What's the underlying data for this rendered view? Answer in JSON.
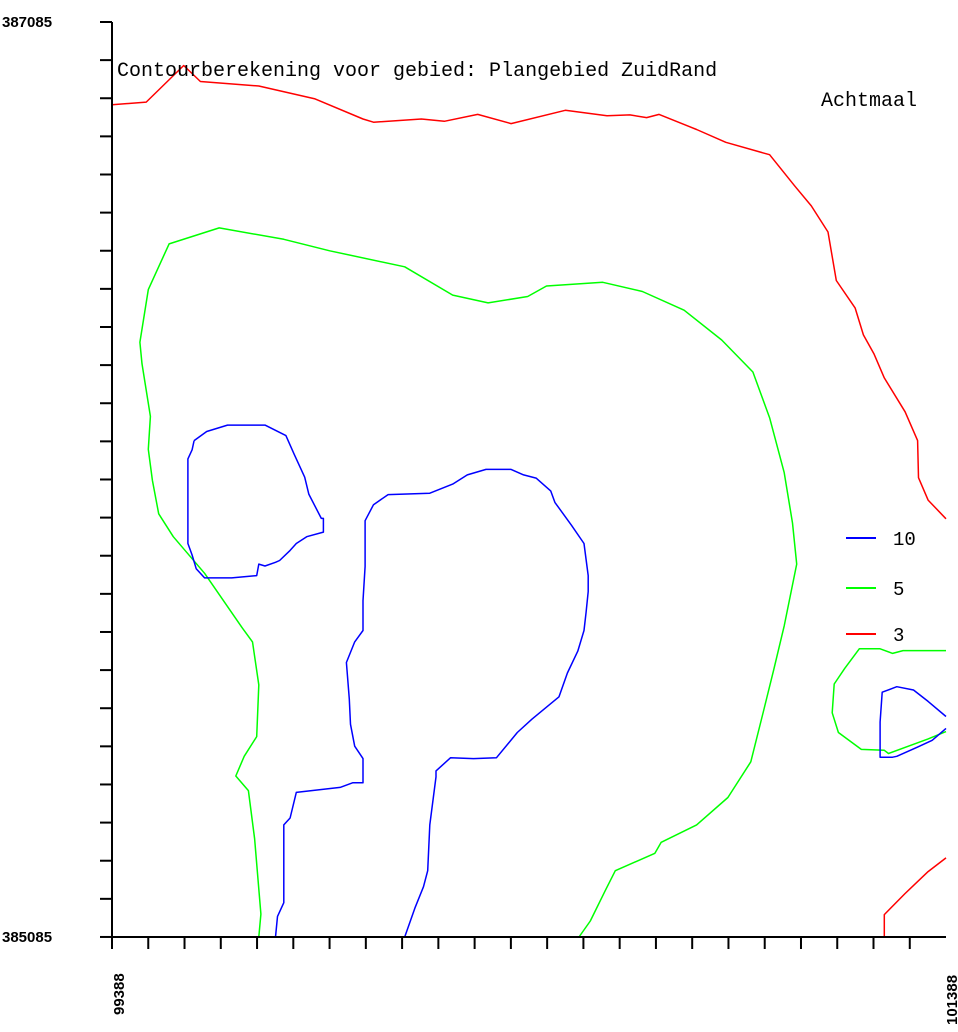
{
  "chart_data": {
    "type": "contour",
    "title": "Contourberekening voor gebied: Plangebied ZuidRand",
    "subtitle": "Achtmaal",
    "xlabel": "",
    "ylabel": "",
    "xlim": [
      99388,
      101388
    ],
    "ylim": [
      385085,
      387085
    ],
    "x_tick_labels": [
      "99388",
      "101388"
    ],
    "y_tick_labels": [
      "387085",
      "385085"
    ],
    "x_tick_step": 86.96,
    "y_tick_step": 83.33,
    "grid": false,
    "legend_position": "right",
    "legend": [
      {
        "label": "10",
        "color": "#0000ff"
      },
      {
        "label": "5",
        "color": "#00ff00"
      },
      {
        "label": "3",
        "color": "#ff0000"
      }
    ],
    "series": [
      {
        "name": "3",
        "color": "#ff0000",
        "lines": [
          [
            [
              99388,
              386904
            ],
            [
              99470,
              386910
            ],
            [
              99560,
              386990
            ],
            [
              99600,
              386955
            ],
            [
              99740,
              386945
            ],
            [
              99875,
              386917
            ],
            [
              99990,
              386873
            ],
            [
              100015,
              386866
            ],
            [
              100130,
              386873
            ],
            [
              100185,
              386868
            ],
            [
              100265,
              386883
            ],
            [
              100345,
              386863
            ],
            [
              100475,
              386892
            ],
            [
              100575,
              386880
            ],
            [
              100630,
              386882
            ],
            [
              100670,
              386876
            ],
            [
              100700,
              386883
            ],
            [
              100790,
              386850
            ],
            [
              100860,
              386822
            ],
            [
              100945,
              386800
            ],
            [
              100965,
              386795
            ],
            [
              101025,
              386727
            ],
            [
              101065,
              386683
            ],
            [
              101105,
              386626
            ],
            [
              101125,
              386520
            ],
            [
              101170,
              386460
            ],
            [
              101190,
              386401
            ],
            [
              101215,
              386360
            ],
            [
              101240,
              386307
            ],
            [
              101290,
              386233
            ],
            [
              101320,
              386170
            ],
            [
              101322,
              386089
            ],
            [
              101345,
              386040
            ],
            [
              101388,
              385999
            ]
          ],
          [
            [
              101388,
              385258
            ],
            [
              101345,
              385228
            ],
            [
              101290,
              385180
            ],
            [
              101240,
              385134
            ],
            [
              101240,
              385085
            ]
          ]
        ]
      },
      {
        "name": "5",
        "color": "#00ff00",
        "lines": [
          [
            [
              99740,
              385085
            ],
            [
              99745,
              385135
            ],
            [
              99730,
              385300
            ],
            [
              99715,
              385405
            ],
            [
              99685,
              385437
            ],
            [
              99705,
              385480
            ],
            [
              99735,
              385523
            ],
            [
              99740,
              385636
            ],
            [
              99725,
              385730
            ],
            [
              99700,
              385761
            ],
            [
              99610,
              385880
            ],
            [
              99535,
              385960
            ],
            [
              99500,
              386010
            ],
            [
              99485,
              386083
            ],
            [
              99475,
              386151
            ],
            [
              99480,
              386223
            ],
            [
              99460,
              386338
            ],
            [
              99455,
              386385
            ],
            [
              99475,
              386500
            ],
            [
              99525,
              386600
            ],
            [
              99645,
              386635
            ],
            [
              99800,
              386610
            ],
            [
              99910,
              386585
            ],
            [
              100090,
              386550
            ],
            [
              100205,
              386488
            ],
            [
              100290,
              386471
            ],
            [
              100385,
              386485
            ],
            [
              100430,
              386508
            ],
            [
              100565,
              386516
            ],
            [
              100660,
              386496
            ],
            [
              100760,
              386455
            ],
            [
              100850,
              386390
            ],
            [
              100925,
              386320
            ],
            [
              100965,
              386220
            ],
            [
              101000,
              386100
            ],
            [
              101020,
              385990
            ],
            [
              101030,
              385900
            ],
            [
              101000,
              385765
            ],
            [
              100975,
              385670
            ],
            [
              100950,
              385578
            ],
            [
              100920,
              385468
            ],
            [
              100865,
              385390
            ],
            [
              100790,
              385330
            ],
            [
              100705,
              385292
            ],
            [
              100690,
              385268
            ],
            [
              100595,
              385230
            ],
            [
              100570,
              385185
            ],
            [
              100535,
              385120
            ],
            [
              100508,
              385085
            ]
          ],
          [
            [
              101388,
              385711
            ],
            [
              101285,
              385711
            ],
            [
              101260,
              385705
            ],
            [
              101230,
              385715
            ],
            [
              101180,
              385715
            ],
            [
              101145,
              385672
            ],
            [
              101120,
              385638
            ],
            [
              101115,
              385575
            ],
            [
              101130,
              385532
            ],
            [
              101185,
              385495
            ],
            [
              101240,
              385493
            ],
            [
              101250,
              385486
            ],
            [
              101345,
              385518
            ],
            [
              101388,
              385534
            ]
          ]
        ]
      },
      {
        "name": "10",
        "color": "#0000ff",
        "lines": [
          [
            [
              99780,
              385085
            ],
            [
              99785,
              385130
            ],
            [
              99800,
              385160
            ],
            [
              99800,
              385250
            ],
            [
              99800,
              385330
            ],
            [
              99815,
              385345
            ],
            [
              99830,
              385401
            ],
            [
              99935,
              385412
            ],
            [
              99965,
              385422
            ],
            [
              99990,
              385422
            ],
            [
              99990,
              385475
            ],
            [
              99970,
              385502
            ],
            [
              99960,
              385550
            ],
            [
              99957,
              385605
            ],
            [
              99950,
              385685
            ],
            [
              99970,
              385730
            ],
            [
              99990,
              385755
            ],
            [
              99990,
              385820
            ],
            [
              99995,
              385895
            ],
            [
              99995,
              385995
            ],
            [
              100015,
              386030
            ],
            [
              100050,
              386052
            ],
            [
              100150,
              386055
            ],
            [
              100205,
              386075
            ],
            [
              100240,
              386095
            ],
            [
              100285,
              386107
            ],
            [
              100345,
              386107
            ],
            [
              100375,
              386095
            ],
            [
              100405,
              386088
            ],
            [
              100440,
              386060
            ],
            [
              100450,
              386035
            ],
            [
              100490,
              385985
            ],
            [
              100520,
              385945
            ],
            [
              100530,
              385875
            ],
            [
              100530,
              385840
            ],
            [
              100525,
              385795
            ],
            [
              100520,
              385755
            ],
            [
              100505,
              385710
            ],
            [
              100480,
              385662
            ],
            [
              100460,
              385610
            ],
            [
              100395,
              385561
            ],
            [
              100360,
              385532
            ],
            [
              100310,
              385477
            ],
            [
              100255,
              385475
            ],
            [
              100200,
              385477
            ],
            [
              100165,
              385448
            ],
            [
              100165,
              385435
            ],
            [
              100150,
              385330
            ],
            [
              100145,
              385230
            ],
            [
              100135,
              385195
            ],
            [
              100115,
              385150
            ],
            [
              100090,
              385085
            ]
          ],
          [
            [
              99585,
              386170
            ],
            [
              99615,
              386190
            ],
            [
              99665,
              386204
            ],
            [
              99755,
              386204
            ],
            [
              99805,
              386181
            ],
            [
              99825,
              386140
            ],
            [
              99850,
              386090
            ],
            [
              99860,
              386053
            ],
            [
              99890,
              386000
            ],
            [
              99895,
              386000
            ],
            [
              99895,
              385976
            ],
            [
              99895,
              385970
            ],
            [
              99855,
              385960
            ],
            [
              99830,
              385945
            ],
            [
              99815,
              385930
            ],
            [
              99790,
              385908
            ],
            [
              99780,
              385904
            ],
            [
              99755,
              385896
            ],
            [
              99740,
              385900
            ],
            [
              99735,
              385875
            ],
            [
              99675,
              385870
            ],
            [
              99610,
              385870
            ],
            [
              99590,
              385890
            ],
            [
              99580,
              385920
            ],
            [
              99570,
              385945
            ],
            [
              99570,
              385990
            ],
            [
              99570,
              386025
            ],
            [
              99570,
              386060
            ],
            [
              99570,
              386105
            ],
            [
              99570,
              386130
            ],
            [
              99580,
              386150
            ],
            [
              99585,
              386170
            ]
          ],
          [
            [
              101388,
              385541
            ],
            [
              101355,
              385515
            ],
            [
              101320,
              385500
            ],
            [
              101270,
              385480
            ],
            [
              101260,
              385478
            ],
            [
              101230,
              385478
            ],
            [
              101230,
              385502
            ],
            [
              101230,
              385555
            ],
            [
              101235,
              385620
            ],
            [
              101270,
              385632
            ],
            [
              101310,
              385625
            ],
            [
              101345,
              385600
            ],
            [
              101388,
              385567
            ]
          ]
        ]
      }
    ]
  }
}
